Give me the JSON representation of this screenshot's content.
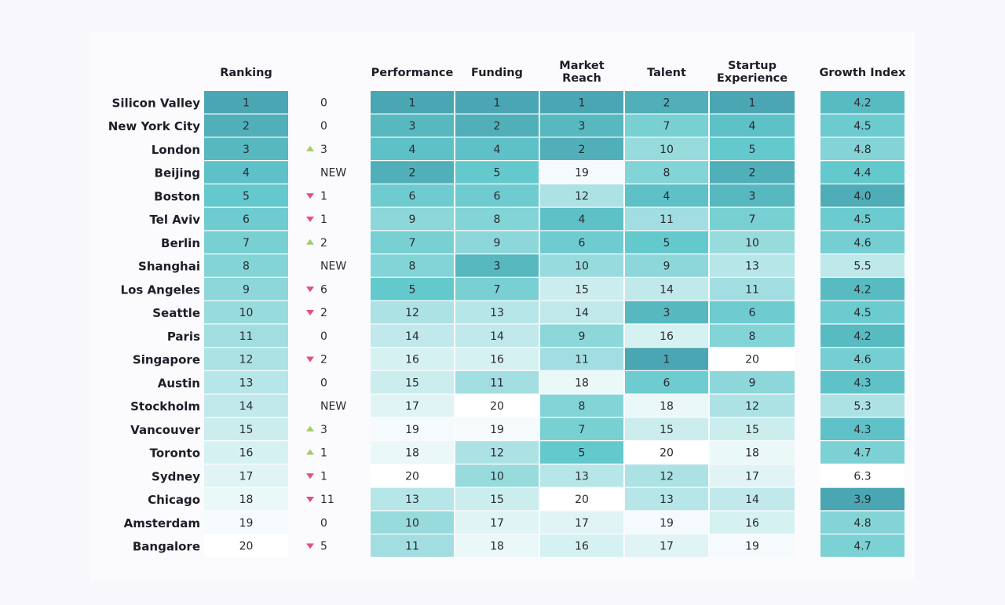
{
  "chart_data": {
    "type": "heatmap",
    "rows": [
      "Silicon Valley",
      "New York City",
      "London",
      "Beijing",
      "Boston",
      "Tel Aviv",
      "Berlin",
      "Shanghai",
      "Los Angeles",
      "Seattle",
      "Paris",
      "Singapore",
      "Austin",
      "Stockholm",
      "Vancouver",
      "Toronto",
      "Sydney",
      "Chicago",
      "Amsterdam",
      "Bangalore"
    ],
    "ranking": {
      "header": "Ranking",
      "values": [
        1,
        2,
        3,
        4,
        5,
        6,
        7,
        8,
        9,
        10,
        11,
        12,
        13,
        14,
        15,
        16,
        17,
        18,
        19,
        20
      ]
    },
    "change": {
      "values": [
        {
          "dir": "none",
          "label": "0"
        },
        {
          "dir": "none",
          "label": "0"
        },
        {
          "dir": "up",
          "label": "3"
        },
        {
          "dir": "new",
          "label": "NEW"
        },
        {
          "dir": "down",
          "label": "1"
        },
        {
          "dir": "down",
          "label": "1"
        },
        {
          "dir": "up",
          "label": "2"
        },
        {
          "dir": "new",
          "label": "NEW"
        },
        {
          "dir": "down",
          "label": "6"
        },
        {
          "dir": "down",
          "label": "2"
        },
        {
          "dir": "none",
          "label": "0"
        },
        {
          "dir": "down",
          "label": "2"
        },
        {
          "dir": "none",
          "label": "0"
        },
        {
          "dir": "new",
          "label": "NEW"
        },
        {
          "dir": "up",
          "label": "3"
        },
        {
          "dir": "up",
          "label": "1"
        },
        {
          "dir": "down",
          "label": "1"
        },
        {
          "dir": "down",
          "label": "11"
        },
        {
          "dir": "none",
          "label": "0"
        },
        {
          "dir": "down",
          "label": "5"
        }
      ]
    },
    "columns": [
      {
        "header": [
          "Performance"
        ],
        "values": [
          1,
          3,
          4,
          2,
          6,
          9,
          7,
          8,
          5,
          12,
          14,
          16,
          15,
          17,
          19,
          18,
          20,
          13,
          10,
          11
        ]
      },
      {
        "header": [
          "Funding"
        ],
        "values": [
          1,
          2,
          4,
          5,
          6,
          8,
          9,
          3,
          7,
          13,
          14,
          16,
          11,
          20,
          19,
          12,
          10,
          15,
          17,
          18
        ]
      },
      {
        "header": [
          "Market",
          "Reach"
        ],
        "values": [
          1,
          3,
          2,
          19,
          12,
          4,
          6,
          10,
          15,
          14,
          9,
          11,
          18,
          8,
          7,
          5,
          13,
          20,
          17,
          16
        ]
      },
      {
        "header": [
          "Talent"
        ],
        "values": [
          2,
          7,
          10,
          8,
          4,
          11,
          5,
          9,
          14,
          3,
          16,
          1,
          6,
          18,
          15,
          20,
          12,
          13,
          19,
          17
        ]
      },
      {
        "header": [
          "Startup",
          "Experience"
        ],
        "values": [
          1,
          4,
          5,
          2,
          3,
          7,
          10,
          13,
          11,
          6,
          8,
          20,
          9,
          12,
          15,
          18,
          17,
          14,
          16,
          19
        ]
      }
    ],
    "growth": {
      "header": "Growth Index",
      "values": [
        4.2,
        4.5,
        4.8,
        4.4,
        4.0,
        4.5,
        4.6,
        5.5,
        4.2,
        4.5,
        4.2,
        4.6,
        4.3,
        5.3,
        4.3,
        4.7,
        6.3,
        3.9,
        4.8,
        4.7
      ]
    },
    "colors": {
      "dark": "#4aa6b2",
      "mid": "#62c8cc",
      "light": "#ffffff",
      "up": "#a6c96a",
      "down": "#e0527a"
    }
  }
}
